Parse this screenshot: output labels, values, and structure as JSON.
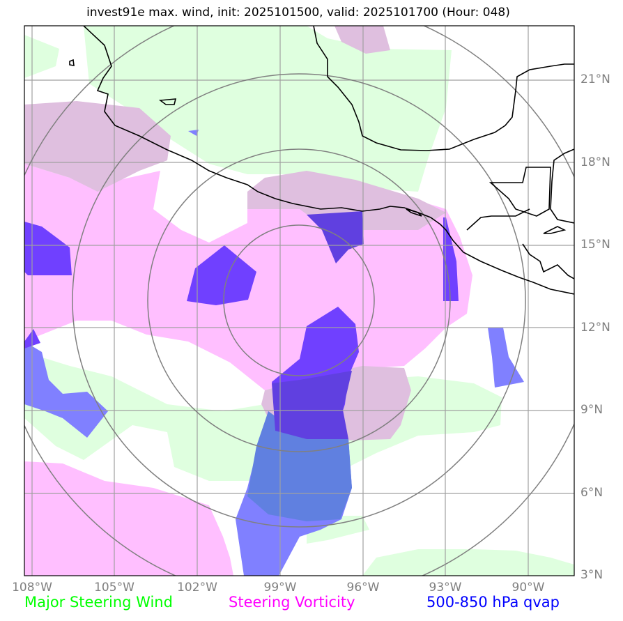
{
  "title": "invest91e max. wind, init: 2025101500, valid: 2025101700 (Hour: 048)",
  "lon_ticks": [
    "108°W",
    "105°W",
    "102°W",
    "99°W",
    "96°W",
    "93°W",
    "90°W"
  ],
  "lat_ticks": [
    "21°N",
    "18°N",
    "15°N",
    "12°N",
    "9°N",
    "6°N",
    "3°N"
  ],
  "legend": [
    {
      "label": "Major Steering Wind",
      "color": "#00ff00"
    },
    {
      "label": "Steering Vorticity",
      "color": "#ff00ff"
    },
    {
      "label": "500-850 hPa qvap",
      "color": "#0000ff"
    }
  ],
  "layer_colors": {
    "wind": "#dfffdf",
    "vorticity": "#ffbfff",
    "overlap_wind_vort": "#dfbfdf",
    "qvap_light": "#8080ff",
    "qvap_blue": "#6080e0",
    "qvap_purple": "#7040ff",
    "qvap_dark": "#6040e0"
  },
  "extent": {
    "lon_min": -108.2,
    "lon_max": -88.3,
    "lat_min": 3.0,
    "lat_max": 22.9
  }
}
